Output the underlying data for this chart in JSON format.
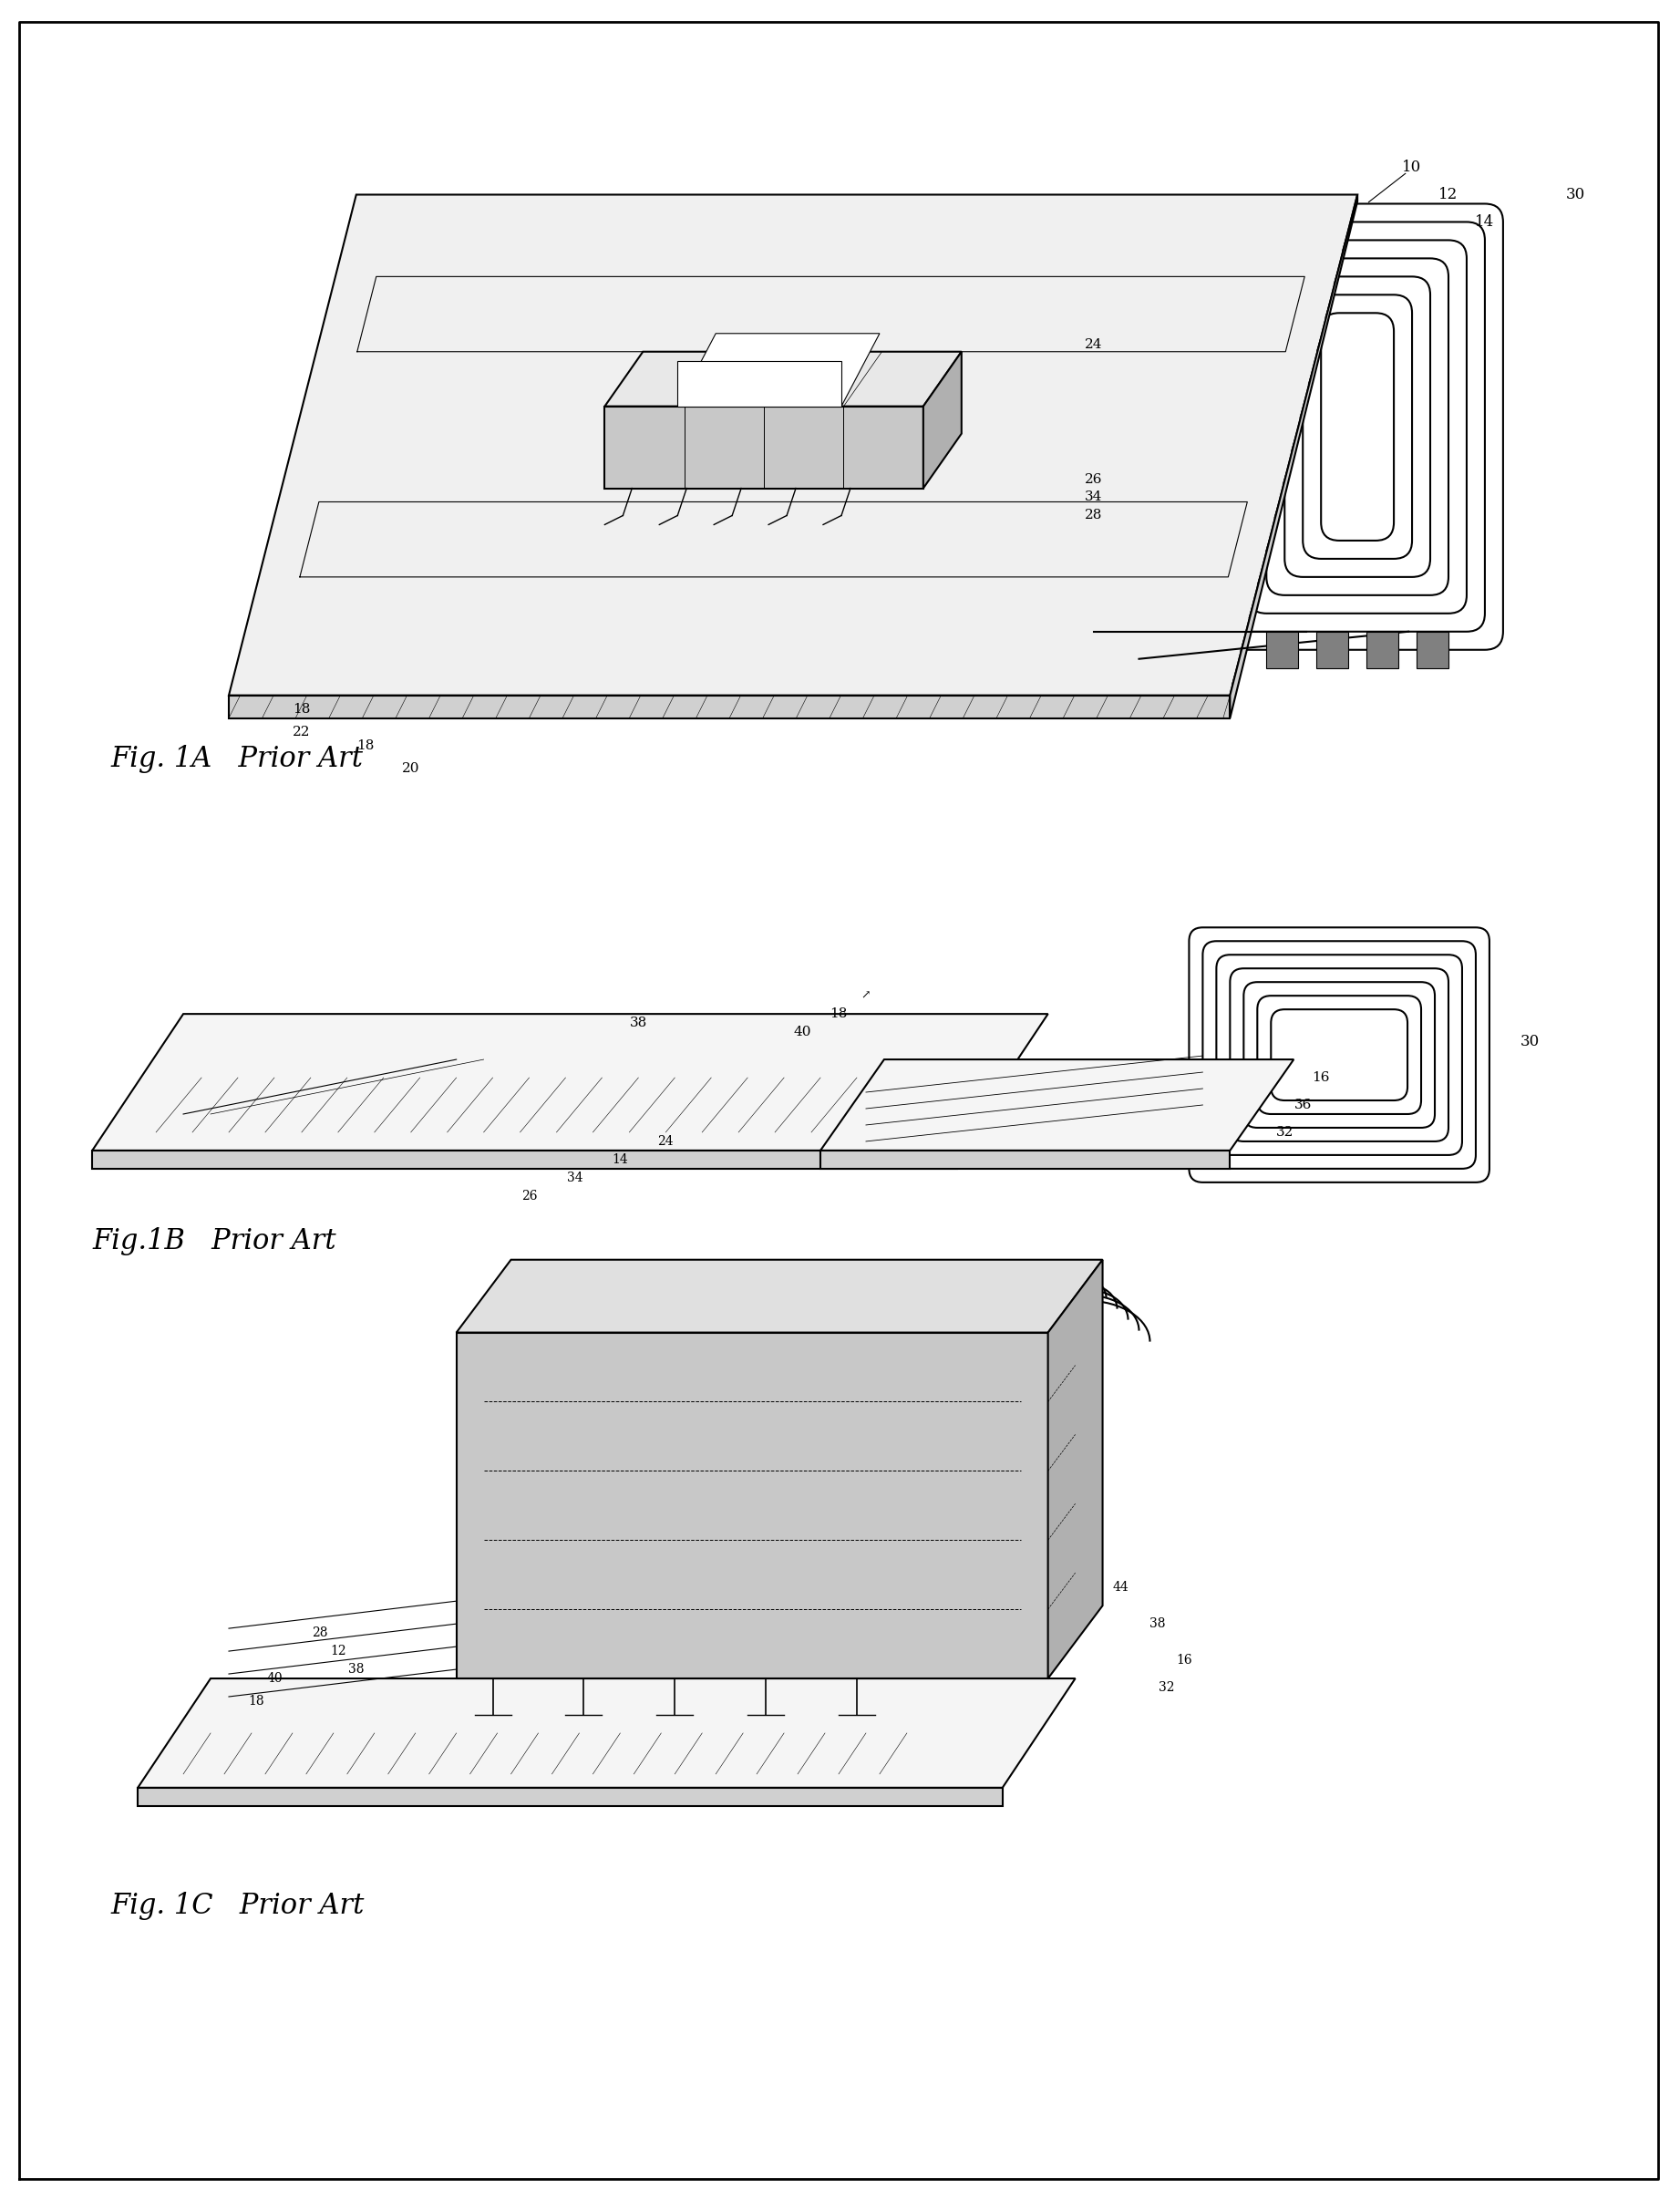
{
  "title": "",
  "background_color": "#ffffff",
  "fig_width": 18.43,
  "fig_height": 24.12,
  "fig1a_label": "Fig. 1A   Prior Art",
  "fig1b_label": "Fig.1B   Prior Art",
  "fig1c_label": "Fig. 1C   Prior Art",
  "line_color": "#000000",
  "hatch_color": "#000000",
  "label_fontsize": 22,
  "ref_fontsize": 13
}
